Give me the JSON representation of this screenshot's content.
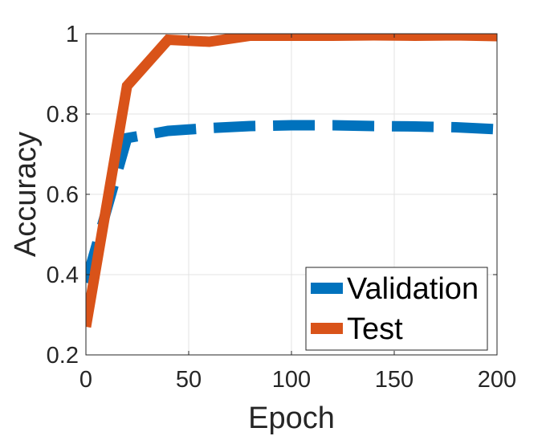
{
  "chart_data": {
    "type": "line",
    "title": "",
    "xlabel": "Epoch",
    "ylabel": "Accuracy",
    "xlim": [
      0,
      200
    ],
    "ylim": [
      0.2,
      1.0
    ],
    "xticks": [
      0,
      50,
      100,
      150,
      200
    ],
    "xtick_labels": [
      "0",
      "50",
      "100",
      "150",
      "200"
    ],
    "yticks": [
      0.2,
      0.4,
      0.6,
      0.8,
      1.0
    ],
    "ytick_labels": [
      "0.2",
      "0.4",
      "0.6",
      "0.8",
      "1"
    ],
    "grid": true,
    "legend_position": "bottom-right",
    "series": [
      {
        "name": "Validation",
        "color": "#0072BD",
        "style": "dashed",
        "x": [
          0,
          10,
          20,
          40,
          60,
          80,
          100,
          120,
          140,
          160,
          180,
          200
        ],
        "y": [
          0.38,
          0.56,
          0.74,
          0.758,
          0.765,
          0.77,
          0.772,
          0.772,
          0.77,
          0.769,
          0.767,
          0.762
        ]
      },
      {
        "name": "Test",
        "color": "#D95319",
        "style": "solid",
        "x": [
          0,
          10,
          20,
          40,
          60,
          80,
          100,
          120,
          140,
          160,
          180,
          200
        ],
        "y": [
          0.27,
          0.57,
          0.87,
          0.985,
          0.98,
          0.995,
          0.995,
          0.995,
          0.996,
          0.995,
          0.996,
          0.994
        ]
      }
    ]
  }
}
